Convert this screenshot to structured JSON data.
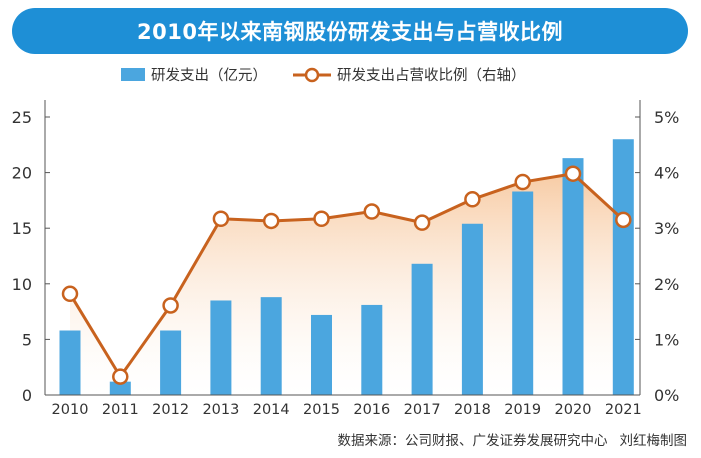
{
  "title": "2010年以来南钢股份研发支出与占营收比例",
  "source_text": "数据来源：公司财报、广发证券发展研究中心",
  "author_text": "刘红梅制图",
  "colors": {
    "title_bg": "#1E8FD6",
    "bar": "#4BA6DF",
    "line": "#C8621E",
    "area_top": "#F7C9A0",
    "area_bottom": "#FFFFFF",
    "axis_text": "#333333"
  },
  "chart_data": {
    "type": "bar",
    "categories": [
      "2010",
      "2011",
      "2012",
      "2013",
      "2014",
      "2015",
      "2016",
      "2017",
      "2018",
      "2019",
      "2020",
      "2021"
    ],
    "series": [
      {
        "name": "研发支出（亿元）",
        "type": "bar",
        "axis": "left",
        "values": [
          5.8,
          1.2,
          5.8,
          8.5,
          8.8,
          7.2,
          8.1,
          11.8,
          15.4,
          18.3,
          21.3,
          23.0
        ]
      },
      {
        "name": "研发支出占营收比例（右轴）",
        "type": "line",
        "axis": "right",
        "values": [
          1.82,
          0.33,
          1.61,
          3.17,
          3.13,
          3.17,
          3.3,
          3.1,
          3.52,
          3.83,
          3.98,
          3.15
        ]
      }
    ],
    "y_left": {
      "ylim": [
        0,
        25
      ],
      "ticks": [
        "0",
        "5",
        "10",
        "15",
        "20",
        "25"
      ]
    },
    "y_right": {
      "ylim": [
        0,
        5
      ],
      "ticks": [
        "0%",
        "1%",
        "2%",
        "3%",
        "4%",
        "5%"
      ]
    },
    "grid": false,
    "legend_position": "top"
  }
}
